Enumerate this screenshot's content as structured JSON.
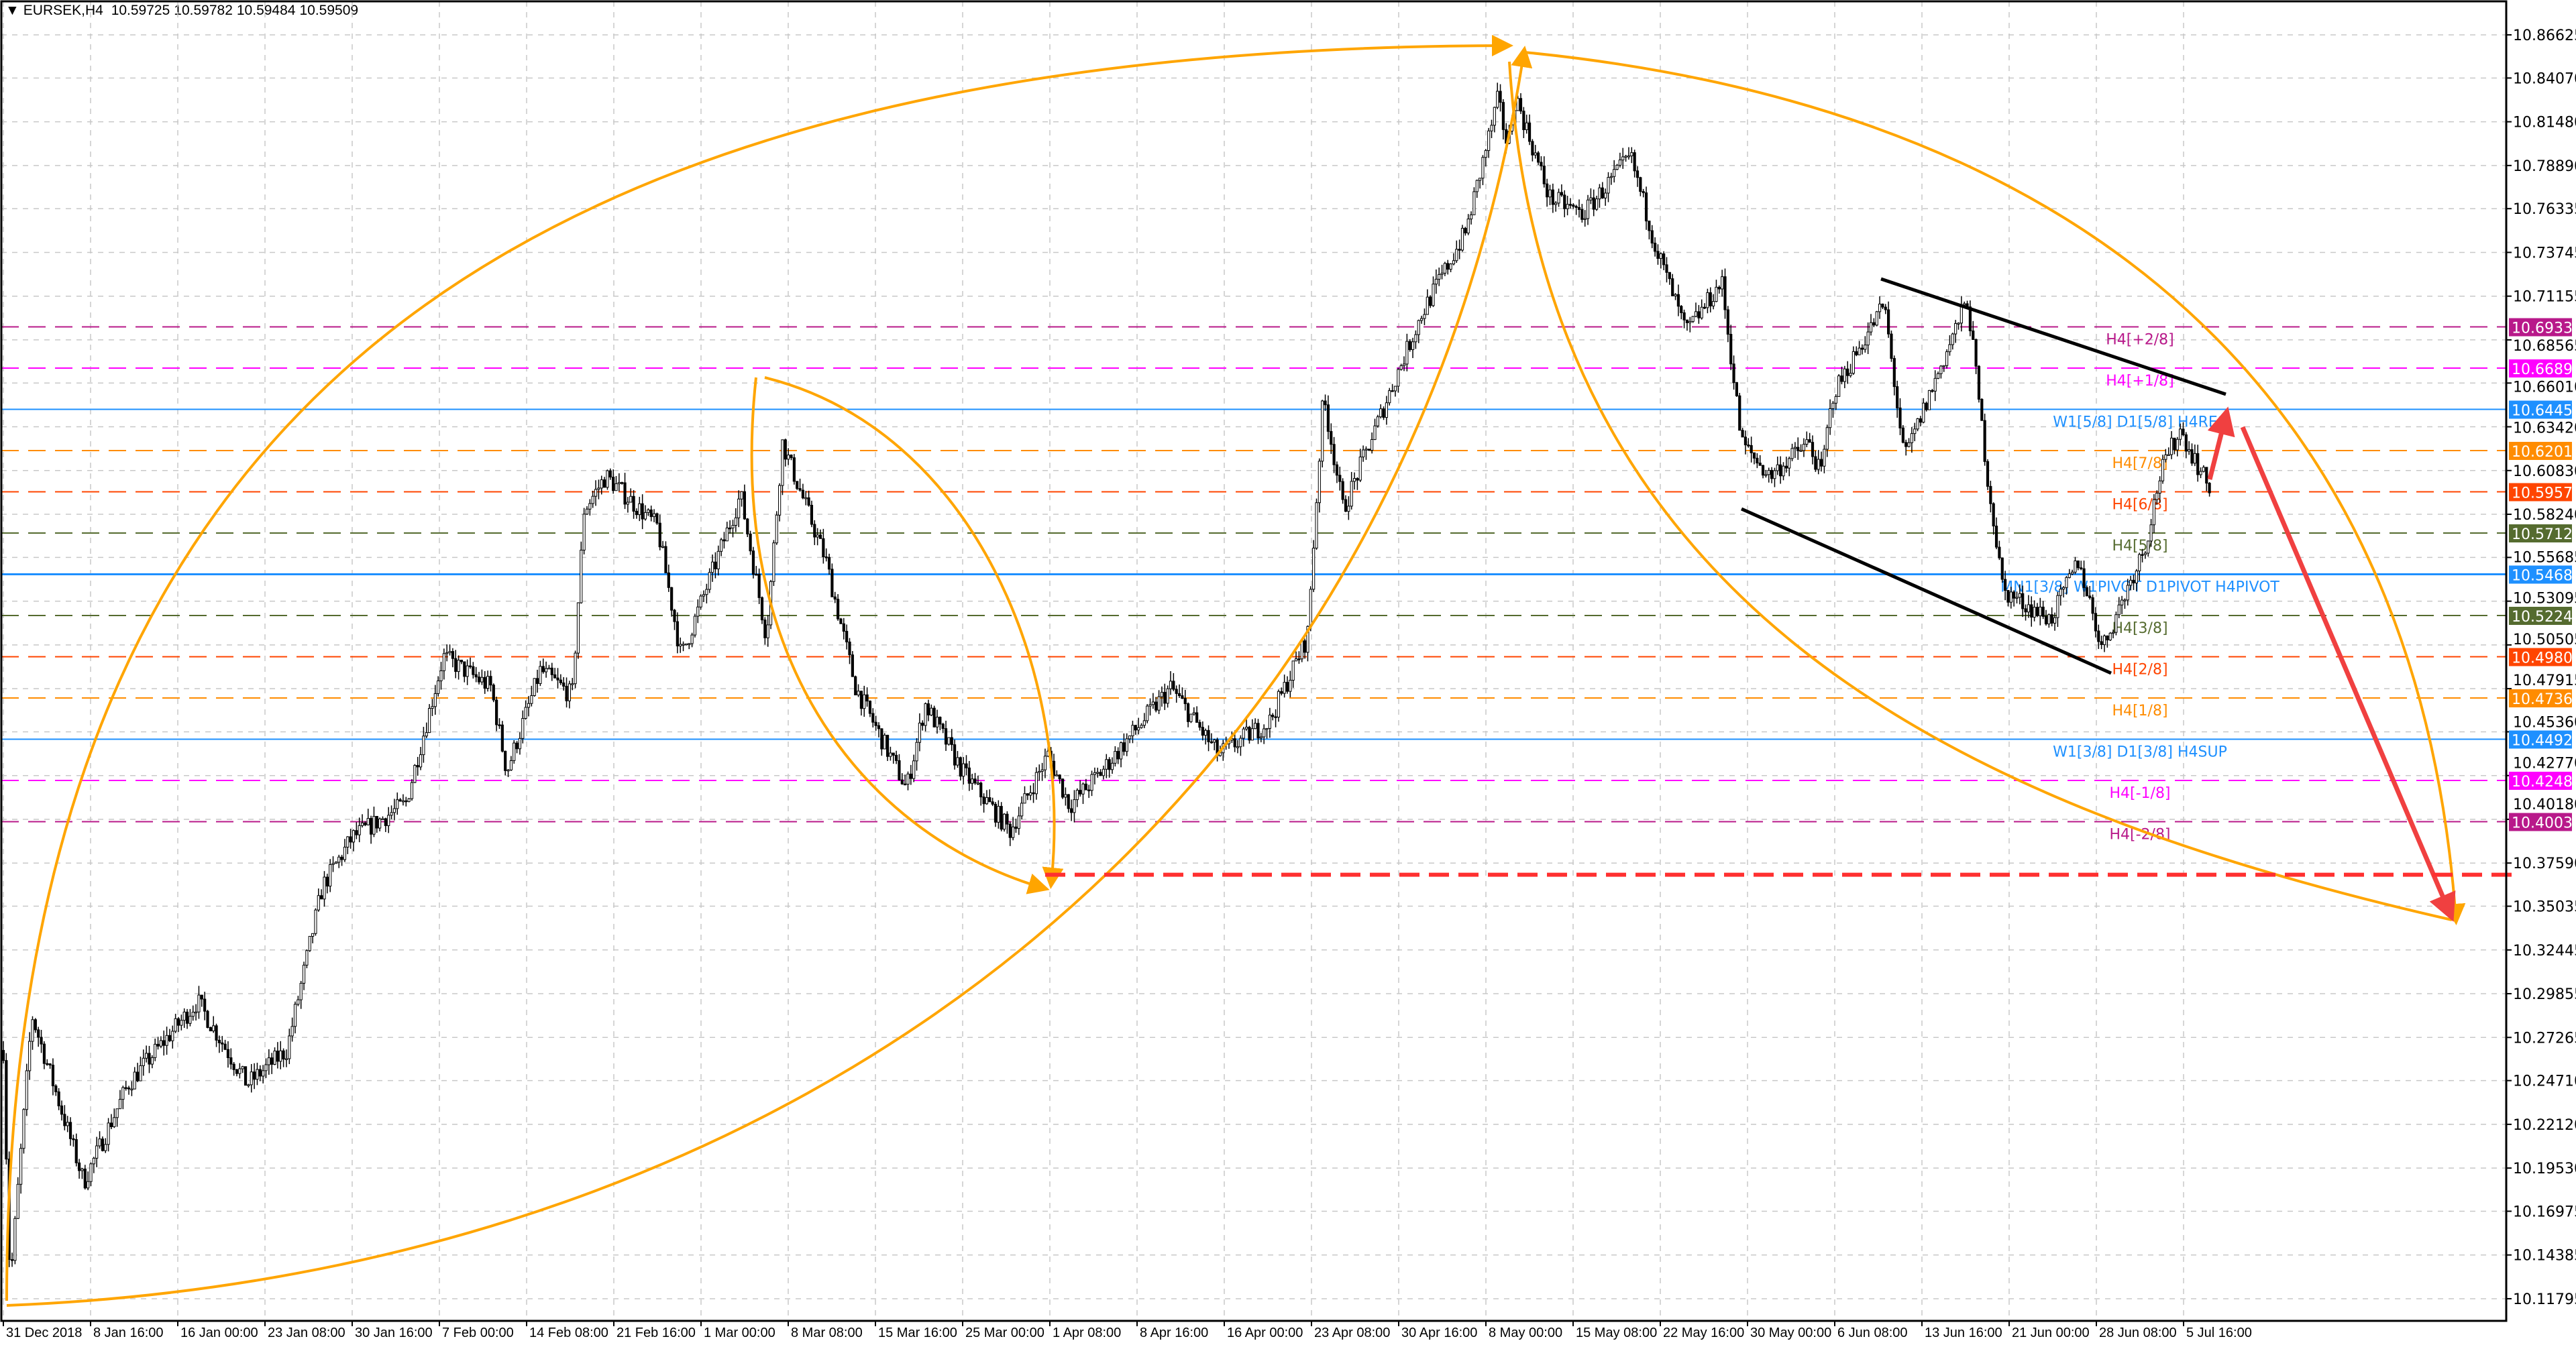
{
  "header": {
    "menu_icon": "triangle-down-icon",
    "symbol": "EURSEK,H4",
    "ohlc": [
      "10.59725",
      "10.59782",
      "10.59484",
      "10.59509"
    ]
  },
  "chart_data": {
    "type": "candlestick",
    "title": "EURSEK,H4",
    "ylim": [
      10.105,
      10.875
    ],
    "grid": true,
    "y_ticks": [
      "10.86625",
      "10.84070",
      "10.81480",
      "10.78890",
      "10.76335",
      "10.73745",
      "10.71155",
      "10.68565",
      "10.66010",
      "10.63420",
      "10.60830",
      "10.58240",
      "10.55685",
      "10.53095",
      "10.50505",
      "10.47915",
      "10.45360",
      "10.42770",
      "10.40180",
      "10.37590",
      "10.35035",
      "10.32445",
      "10.29855",
      "10.27265",
      "10.24710",
      "10.22120",
      "10.19530",
      "10.16975",
      "10.14385",
      "10.11795"
    ],
    "x_ticks": [
      {
        "label": "31 Dec 2018",
        "t": "2018-12-31T00:00"
      },
      {
        "label": "8 Jan 16:00",
        "t": "2019-01-08T16:00"
      },
      {
        "label": "16 Jan 00:00",
        "t": "2019-01-16T00:00"
      },
      {
        "label": "23 Jan 08:00",
        "t": "2019-01-23T08:00"
      },
      {
        "label": "30 Jan 16:00",
        "t": "2019-01-30T16:00"
      },
      {
        "label": "7 Feb 00:00",
        "t": "2019-02-07T00:00"
      },
      {
        "label": "14 Feb 08:00",
        "t": "2019-02-14T08:00"
      },
      {
        "label": "21 Feb 16:00",
        "t": "2019-02-21T16:00"
      },
      {
        "label": "1 Mar 00:00",
        "t": "2019-03-01T00:00"
      },
      {
        "label": "8 Mar 08:00",
        "t": "2019-03-08T08:00"
      },
      {
        "label": "15 Mar 16:00",
        "t": "2019-03-15T16:00"
      },
      {
        "label": "25 Mar 00:00",
        "t": "2019-03-25T00:00"
      },
      {
        "label": "1 Apr 08:00",
        "t": "2019-04-01T08:00"
      },
      {
        "label": "8 Apr 16:00",
        "t": "2019-04-08T16:00"
      },
      {
        "label": "16 Apr 00:00",
        "t": "2019-04-16T00:00"
      },
      {
        "label": "23 Apr 08:00",
        "t": "2019-04-23T08:00"
      },
      {
        "label": "30 Apr 16:00",
        "t": "2019-04-30T16:00"
      },
      {
        "label": "8 May 00:00",
        "t": "2019-05-08T00:00"
      },
      {
        "label": "15 May 08:00",
        "t": "2019-05-15T08:00"
      },
      {
        "label": "22 May 16:00",
        "t": "2019-05-22T16:00"
      },
      {
        "label": "30 May 00:00",
        "t": "2019-05-30T00:00"
      },
      {
        "label": "6 Jun 08:00",
        "t": "2019-06-06T08:00"
      },
      {
        "label": "13 Jun 16:00",
        "t": "2019-06-13T16:00"
      },
      {
        "label": "21 Jun 00:00",
        "t": "2019-06-21T00:00"
      },
      {
        "label": "28 Jun 08:00",
        "t": "2019-06-28T08:00"
      },
      {
        "label": "5 Jul 16:00",
        "t": "2019-07-05T16:00"
      }
    ],
    "price_path": [
      [
        "2018-12-31T00:00",
        10.265
      ],
      [
        "2018-12-31T16:00",
        10.125
      ],
      [
        "2019-01-02T20:00",
        10.286
      ],
      [
        "2019-01-08T00:00",
        10.187
      ],
      [
        "2019-01-11T20:00",
        10.245
      ],
      [
        "2019-01-17T16:00",
        10.294
      ],
      [
        "2019-01-21T20:00",
        10.245
      ],
      [
        "2019-01-25T04:00",
        10.265
      ],
      [
        "2019-01-28T04:00",
        10.362
      ],
      [
        "2019-01-30T16:00",
        10.391
      ],
      [
        "2019-02-04T04:00",
        10.411
      ],
      [
        "2019-02-07T08:00",
        10.498
      ],
      [
        "2019-02-11T08:00",
        10.48
      ],
      [
        "2019-02-12T16:00",
        10.43
      ],
      [
        "2019-02-15T12:00",
        10.49
      ],
      [
        "2019-02-18T04:00",
        10.475
      ],
      [
        "2019-02-19T04:00",
        10.585
      ],
      [
        "2019-02-21T00:00",
        10.605
      ],
      [
        "2019-02-25T08:00",
        10.575
      ],
      [
        "2019-02-27T08:00",
        10.498
      ],
      [
        "2019-03-04T08:00",
        10.594
      ],
      [
        "2019-03-06T12:00",
        10.51
      ],
      [
        "2019-03-07T20:00",
        10.625
      ],
      [
        "2019-03-11T12:00",
        10.555
      ],
      [
        "2019-03-14T00:00",
        10.48
      ],
      [
        "2019-03-19T00:00",
        10.42
      ],
      [
        "2019-03-21T00:00",
        10.47
      ],
      [
        "2019-03-25T00:00",
        10.43
      ],
      [
        "2019-03-29T00:00",
        10.395
      ],
      [
        "2019-04-01T04:00",
        10.44
      ],
      [
        "2019-04-03T00:00",
        10.41
      ],
      [
        "2019-04-05T16:00",
        10.43
      ],
      [
        "2019-04-11T12:00",
        10.48
      ],
      [
        "2019-04-15T12:00",
        10.44
      ],
      [
        "2019-04-19T20:00",
        10.46
      ],
      [
        "2019-04-23T00:00",
        10.51
      ],
      [
        "2019-04-24T08:00",
        10.653
      ],
      [
        "2019-04-26T00:00",
        10.585
      ],
      [
        "2019-04-30T08:00",
        10.662
      ],
      [
        "2019-05-02T16:00",
        10.702
      ],
      [
        "2019-05-06T08:00",
        10.75
      ],
      [
        "2019-05-09T00:00",
        10.828
      ],
      [
        "2019-05-09T20:00",
        10.8
      ],
      [
        "2019-05-10T12:00",
        10.83
      ],
      [
        "2019-05-13T08:00",
        10.77
      ],
      [
        "2019-05-16T04:00",
        10.76
      ],
      [
        "2019-05-20T04:00",
        10.794
      ],
      [
        "2019-05-22T08:00",
        10.74
      ],
      [
        "2019-05-24T20:00",
        10.69
      ],
      [
        "2019-05-27T20:00",
        10.72
      ],
      [
        "2019-05-29T12:00",
        10.625
      ],
      [
        "2019-05-31T20:00",
        10.605
      ],
      [
        "2019-06-04T04:00",
        10.625
      ],
      [
        "2019-06-05T04:00",
        10.605
      ],
      [
        "2019-06-06T04:00",
        10.653
      ],
      [
        "2019-06-10T12:00",
        10.707
      ],
      [
        "2019-06-12T04:00",
        10.615
      ],
      [
        "2019-06-17T12:00",
        10.71
      ],
      [
        "2019-06-19T04:00",
        10.605
      ],
      [
        "2019-06-20T12:00",
        10.537
      ],
      [
        "2019-06-24T12:00",
        10.52
      ],
      [
        "2019-06-26T20:00",
        10.555
      ],
      [
        "2019-06-28T20:00",
        10.503
      ],
      [
        "2019-07-02T12:00",
        10.565
      ],
      [
        "2019-07-03T16:00",
        10.605
      ],
      [
        "2019-07-05T08:00",
        10.633
      ],
      [
        "2019-07-08T00:00",
        10.59509
      ]
    ],
    "levels": [
      {
        "label": "H4[+2/8]",
        "price": "10.69336",
        "color": "#b8198a",
        "style": "dashed"
      },
      {
        "label": "H4[+1/8]",
        "price": "10.66895",
        "color": "#ff00ff",
        "style": "dashed"
      },
      {
        "label": "W1[5/8] D1[5/8] H4RES",
        "price": "10.64453",
        "color": "#1e90ff",
        "style": "solid"
      },
      {
        "label": "H4[7/8]",
        "price": "10.62012",
        "color": "#ff8c00",
        "style": "dashed"
      },
      {
        "label": "H4[6/8]",
        "price": "10.59570",
        "color": "#ff4500",
        "style": "dashed"
      },
      {
        "label": "H4[5/8]",
        "price": "10.57129",
        "color": "#556b2f",
        "style": "dashed"
      },
      {
        "label": "MN1[3/8] W1PIVOT D1PIVOT H4PIVOT",
        "price": "10.54688",
        "color": "#1e90ff",
        "style": "solid"
      },
      {
        "label": "H4[3/8]",
        "price": "10.52246",
        "color": "#556b2f",
        "style": "dashed"
      },
      {
        "label": "H4[2/8]",
        "price": "10.49805",
        "color": "#ff4500",
        "style": "dashed"
      },
      {
        "label": "H4[1/8]",
        "price": "10.47363",
        "color": "#ff8c00",
        "style": "dashed"
      },
      {
        "label": "W1[3/8] D1[3/8] H4SUP",
        "price": "10.44922",
        "color": "#1e90ff",
        "style": "solid"
      },
      {
        "label": "H4[-1/8]",
        "price": "10.42480",
        "color": "#ff00ff",
        "style": "dashed"
      },
      {
        "label": "H4[-2/8]",
        "price": "10.40039",
        "color": "#b8198a",
        "style": "dashed"
      }
    ],
    "target_line": {
      "price": 10.369,
      "color": "#ff3030",
      "style": "dashed"
    },
    "colors": {
      "arcs": "#ffa500",
      "channel": "#000000",
      "arrows": "#f04040",
      "grid": "#c0c0c0"
    }
  }
}
